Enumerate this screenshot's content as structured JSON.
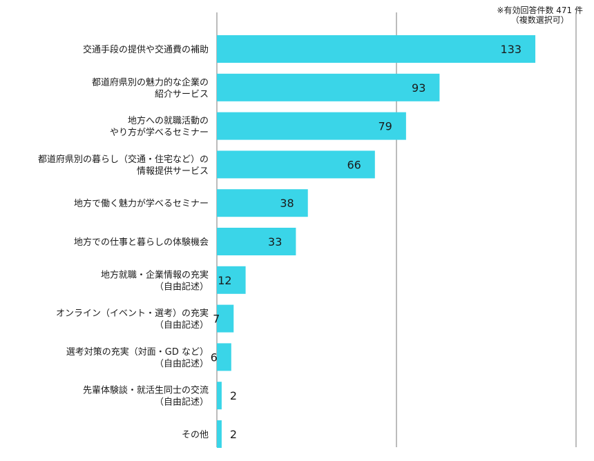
{
  "note": {
    "line1": "※有効回答件数 471 件",
    "line2": "（複数選択可）"
  },
  "colors": {
    "bar": "#3ad5e8",
    "grid": "#7a7a7a",
    "text": "#1a1a1a"
  },
  "chart_data": {
    "type": "bar",
    "orientation": "horizontal",
    "categories": [
      [
        "交通手段の提供や交通費の補助"
      ],
      [
        "都道府県別の魅力的な企業の",
        "紹介サービス"
      ],
      [
        "地方への就職活動の",
        "やり方が学べるセミナー"
      ],
      [
        "都道府県別の暮らし（交通・住宅など）の",
        "情報提供サービス"
      ],
      [
        "地方で働く魅力が学べるセミナー"
      ],
      [
        "地方での仕事と暮らしの体験機会"
      ],
      [
        "地方就職・企業情報の充実",
        "（自由記述）"
      ],
      [
        "オンライン（イベント・選考）の充実",
        "（自由記述）"
      ],
      [
        "選考対策の充実（対面・GD など）",
        "（自由記述）"
      ],
      [
        "先輩体験談・就活生同士の交流",
        "（自由記述）"
      ],
      [
        "その他"
      ]
    ],
    "values": [
      133,
      93,
      79,
      66,
      38,
      33,
      12,
      7,
      6,
      2,
      2
    ],
    "xlim": [
      0,
      150
    ],
    "gridlines": [
      0,
      75,
      150
    ],
    "grid": true,
    "title": "",
    "xlabel": "",
    "ylabel": ""
  }
}
